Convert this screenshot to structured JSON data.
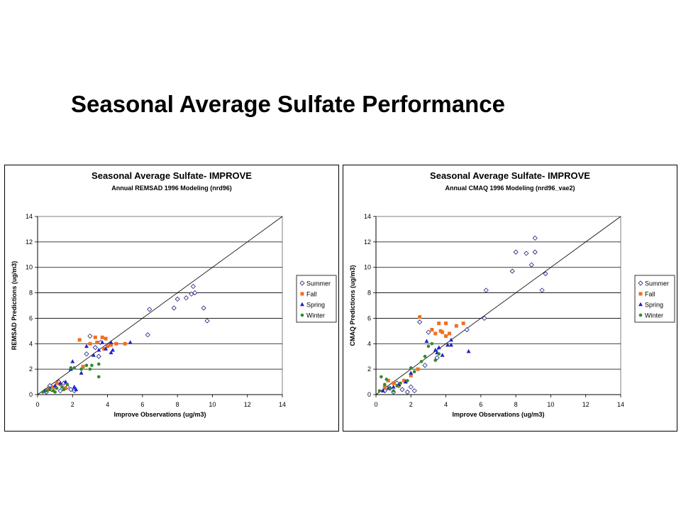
{
  "slide": {
    "title": "Seasonal Average Sulfate Performance"
  },
  "colors": {
    "summer": "#1a1a80",
    "fall": "#f07020",
    "spring": "#1f23c8",
    "winter": "#2e8b2e"
  },
  "chart_data": [
    {
      "type": "scatter",
      "title": "Seasonal Average Sulfate- IMPROVE",
      "subtitle": "Annual REMSAD 1996 Modeling (nrd96)",
      "xlabel": "Improve Observations (ug/m3)",
      "ylabel": "REMSAD Predictions (ug/m3)",
      "xlim": [
        0,
        14
      ],
      "ylim": [
        0,
        14
      ],
      "xticks": [
        "0",
        "2",
        "4",
        "6",
        "8",
        "10",
        "12",
        "14"
      ],
      "yticks": [
        "0",
        "2",
        "4",
        "6",
        "8",
        "10",
        "12",
        "14"
      ],
      "grid": "horizontal",
      "legend": "right",
      "reference_line": "1:1",
      "series": [
        {
          "name": "Summer",
          "marker": "diamond",
          "points": [
            [
              0.5,
              0.2
            ],
            [
              0.8,
              0.4
            ],
            [
              1.0,
              0.6
            ],
            [
              1.3,
              0.3
            ],
            [
              1.5,
              0.9
            ],
            [
              1.7,
              0.6
            ],
            [
              1.9,
              0.4
            ],
            [
              2.1,
              0.3
            ],
            [
              1.2,
              1.0
            ],
            [
              0.7,
              0.7
            ],
            [
              2.8,
              3.2
            ],
            [
              3.0,
              4.6
            ],
            [
              3.3,
              3.7
            ],
            [
              3.5,
              3.0
            ],
            [
              3.6,
              4.1
            ],
            [
              6.3,
              4.7
            ],
            [
              6.4,
              6.7
            ],
            [
              7.8,
              6.8
            ],
            [
              8.0,
              7.5
            ],
            [
              8.5,
              7.6
            ],
            [
              8.8,
              7.9
            ],
            [
              9.0,
              8.0
            ],
            [
              8.9,
              8.5
            ],
            [
              9.5,
              6.8
            ],
            [
              9.7,
              5.8
            ]
          ]
        },
        {
          "name": "Fall",
          "marker": "square",
          "points": [
            [
              0.6,
              0.4
            ],
            [
              0.9,
              0.6
            ],
            [
              1.1,
              0.9
            ],
            [
              1.3,
              0.8
            ],
            [
              1.6,
              0.5
            ],
            [
              2.4,
              4.3
            ],
            [
              2.6,
              2.2
            ],
            [
              3.0,
              4.0
            ],
            [
              3.3,
              4.5
            ],
            [
              3.4,
              4.1
            ],
            [
              3.7,
              4.5
            ],
            [
              3.8,
              3.6
            ],
            [
              3.9,
              4.4
            ],
            [
              4.0,
              3.8
            ],
            [
              4.2,
              3.9
            ],
            [
              4.5,
              4.0
            ],
            [
              5.0,
              4.0
            ]
          ]
        },
        {
          "name": "Spring",
          "marker": "triangle",
          "points": [
            [
              0.4,
              0.3
            ],
            [
              0.7,
              0.5
            ],
            [
              1.0,
              0.7
            ],
            [
              1.3,
              0.9
            ],
            [
              1.6,
              1.0
            ],
            [
              1.9,
              2.0
            ],
            [
              2.0,
              2.6
            ],
            [
              2.1,
              0.6
            ],
            [
              2.2,
              0.4
            ],
            [
              2.5,
              1.7
            ],
            [
              2.8,
              3.8
            ],
            [
              3.2,
              3.1
            ],
            [
              3.5,
              3.5
            ],
            [
              3.7,
              4.1
            ],
            [
              3.9,
              3.6
            ],
            [
              4.2,
              4.1
            ],
            [
              4.3,
              3.5
            ],
            [
              4.2,
              3.3
            ],
            [
              5.3,
              4.1
            ]
          ]
        },
        {
          "name": "Winter",
          "marker": "circle",
          "points": [
            [
              0.3,
              0.2
            ],
            [
              0.5,
              0.3
            ],
            [
              0.7,
              0.4
            ],
            [
              0.9,
              0.3
            ],
            [
              1.1,
              0.5
            ],
            [
              1.4,
              0.6
            ],
            [
              1.7,
              0.8
            ],
            [
              1.9,
              2.1
            ],
            [
              2.1,
              2.1
            ],
            [
              2.5,
              2.0
            ],
            [
              2.8,
              2.3
            ],
            [
              3.0,
              2.0
            ],
            [
              3.1,
              2.3
            ],
            [
              3.5,
              1.4
            ],
            [
              3.5,
              2.4
            ],
            [
              1.0,
              0.2
            ],
            [
              1.5,
              0.4
            ]
          ]
        }
      ]
    },
    {
      "type": "scatter",
      "title": "Seasonal Average Sulfate- IMPROVE",
      "subtitle": "Annual CMAQ 1996 Modeling (nrd96_vae2)",
      "xlabel": "Improve Observations (ug/m3)",
      "ylabel": "CMAQ Predictions (ug/m3)",
      "xlim": [
        0,
        14
      ],
      "ylim": [
        0,
        14
      ],
      "xticks": [
        "0",
        "2",
        "4",
        "6",
        "8",
        "10",
        "12",
        "14"
      ],
      "yticks": [
        "0",
        "2",
        "4",
        "6",
        "8",
        "10",
        "12",
        "14"
      ],
      "grid": "horizontal",
      "legend": "right",
      "reference_line": "1:1",
      "series": [
        {
          "name": "Summer",
          "marker": "diamond",
          "points": [
            [
              0.5,
              0.3
            ],
            [
              0.8,
              0.5
            ],
            [
              1.0,
              0.2
            ],
            [
              1.3,
              0.7
            ],
            [
              1.5,
              0.4
            ],
            [
              1.8,
              0.2
            ],
            [
              2.0,
              0.6
            ],
            [
              2.2,
              0.3
            ],
            [
              1.2,
              0.9
            ],
            [
              2.5,
              5.7
            ],
            [
              2.8,
              2.3
            ],
            [
              3.0,
              4.9
            ],
            [
              3.5,
              2.9
            ],
            [
              5.2,
              5.1
            ],
            [
              6.2,
              6.0
            ],
            [
              6.3,
              8.2
            ],
            [
              7.8,
              9.7
            ],
            [
              8.0,
              11.2
            ],
            [
              8.6,
              11.1
            ],
            [
              8.9,
              10.2
            ],
            [
              9.1,
              11.2
            ],
            [
              9.1,
              12.3
            ],
            [
              9.5,
              8.2
            ],
            [
              9.7,
              9.5
            ]
          ]
        },
        {
          "name": "Fall",
          "marker": "square",
          "points": [
            [
              0.5,
              0.6
            ],
            [
              0.7,
              1.1
            ],
            [
              1.0,
              0.9
            ],
            [
              1.3,
              0.7
            ],
            [
              1.6,
              1.1
            ],
            [
              2.0,
              1.5
            ],
            [
              2.4,
              2.0
            ],
            [
              2.5,
              6.1
            ],
            [
              3.2,
              5.1
            ],
            [
              3.4,
              4.8
            ],
            [
              3.6,
              5.6
            ],
            [
              3.7,
              5.0
            ],
            [
              3.8,
              4.9
            ],
            [
              4.0,
              5.6
            ],
            [
              4.0,
              4.6
            ],
            [
              4.2,
              4.8
            ],
            [
              4.6,
              5.4
            ],
            [
              5.0,
              5.6
            ]
          ]
        },
        {
          "name": "Spring",
          "marker": "triangle",
          "points": [
            [
              0.4,
              0.3
            ],
            [
              0.7,
              0.5
            ],
            [
              1.0,
              0.6
            ],
            [
              1.3,
              0.8
            ],
            [
              1.7,
              1.0
            ],
            [
              2.0,
              1.7
            ],
            [
              2.9,
              4.2
            ],
            [
              3.4,
              3.5
            ],
            [
              3.5,
              3.3
            ],
            [
              3.6,
              3.7
            ],
            [
              3.8,
              3.1
            ],
            [
              4.1,
              3.9
            ],
            [
              4.3,
              4.3
            ],
            [
              4.3,
              3.9
            ],
            [
              5.3,
              3.4
            ]
          ]
        },
        {
          "name": "Winter",
          "marker": "circle",
          "points": [
            [
              0.2,
              0.3
            ],
            [
              0.3,
              1.4
            ],
            [
              0.5,
              0.8
            ],
            [
              0.6,
              1.2
            ],
            [
              0.8,
              0.5
            ],
            [
              1.0,
              0.3
            ],
            [
              1.2,
              0.7
            ],
            [
              1.4,
              0.9
            ],
            [
              1.8,
              1.1
            ],
            [
              2.0,
              2.1
            ],
            [
              2.2,
              1.8
            ],
            [
              2.6,
              2.6
            ],
            [
              2.8,
              3.0
            ],
            [
              3.0,
              3.8
            ],
            [
              3.2,
              4.0
            ],
            [
              3.4,
              2.7
            ],
            [
              3.6,
              3.2
            ]
          ]
        }
      ]
    }
  ]
}
